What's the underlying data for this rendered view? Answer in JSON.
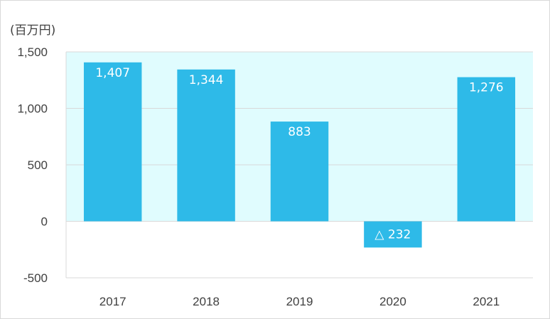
{
  "chart_data": {
    "type": "bar",
    "unit_label": "(百万円)",
    "categories": [
      "2017",
      "2018",
      "2019",
      "2020",
      "2021"
    ],
    "values": [
      1407,
      1344,
      883,
      -232,
      1276
    ],
    "data_labels": [
      "1,407",
      "1,344",
      "883",
      "△ 232",
      "1,276"
    ],
    "y_ticks": [
      1500,
      1000,
      500,
      0,
      -500
    ],
    "y_tick_labels": [
      "1,500",
      "1,000",
      "500",
      "0",
      "-500"
    ],
    "ylim": [
      -500,
      1500
    ],
    "grid": true,
    "bar_color": "#2EBAE8",
    "positive_band_color": "#E0FCFE",
    "gridline_color": "#d9d9d9"
  }
}
